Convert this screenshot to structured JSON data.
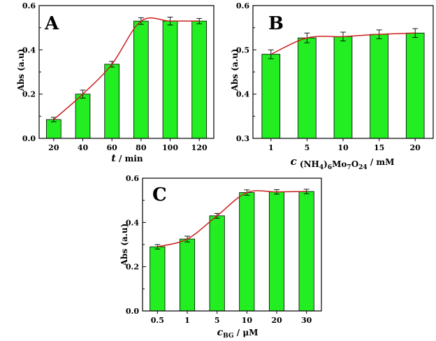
{
  "chart_data": [
    {
      "panel": "A",
      "type": "bar",
      "categories": [
        "20",
        "40",
        "60",
        "80",
        "100",
        "120"
      ],
      "values": [
        0.085,
        0.2,
        0.335,
        0.53,
        0.53,
        0.53
      ],
      "errors": [
        0.01,
        0.018,
        0.013,
        0.015,
        0.018,
        0.012
      ],
      "fit_line": true,
      "ylim": [
        0,
        0.6
      ],
      "yticks": [
        "0.0",
        "0.2",
        "0.4",
        "0.6"
      ],
      "ylabel": "Abs (a.u)",
      "xlabel": {
        "main": "t",
        "rest": " / min"
      },
      "colors": {
        "bar": "#22ee22",
        "fit": "#cc1f1f"
      }
    },
    {
      "panel": "B",
      "type": "bar",
      "categories": [
        "1",
        "5",
        "10",
        "15",
        "20"
      ],
      "values": [
        0.49,
        0.527,
        0.53,
        0.535,
        0.538
      ],
      "errors": [
        0.01,
        0.011,
        0.01,
        0.01,
        0.01
      ],
      "fit_line": true,
      "ylim": [
        0.3,
        0.6
      ],
      "yticks": [
        "0.3",
        "0.4",
        "0.5",
        "0.6"
      ],
      "ylabel": "Abs (a.u)",
      "xlabel": {
        "main": "c",
        "sub_text": " (NH",
        "sub1": "4",
        "mid1": ")",
        "sub2": "6",
        "mid2": "Mo",
        "sub3": "7",
        "mid3": "O",
        "sub4": "24",
        "rest": " / mM"
      },
      "colors": {
        "bar": "#22ee22",
        "fit": "#cc1f1f"
      }
    },
    {
      "panel": "C",
      "type": "bar",
      "categories": [
        "0.5",
        "1",
        "5",
        "10",
        "20",
        "30"
      ],
      "values": [
        0.29,
        0.325,
        0.43,
        0.535,
        0.538,
        0.54
      ],
      "errors": [
        0.01,
        0.013,
        0.011,
        0.012,
        0.01,
        0.01
      ],
      "fit_line": true,
      "ylim": [
        0,
        0.6
      ],
      "yticks": [
        "0.0",
        "0.2",
        "0.4",
        "0.6"
      ],
      "ylabel": "Abs (a.u)",
      "xlabel": {
        "main": "c",
        "sub": "BG",
        "rest": " / μM"
      },
      "colors": {
        "bar": "#22ee22",
        "fit": "#cc1f1f"
      }
    }
  ]
}
